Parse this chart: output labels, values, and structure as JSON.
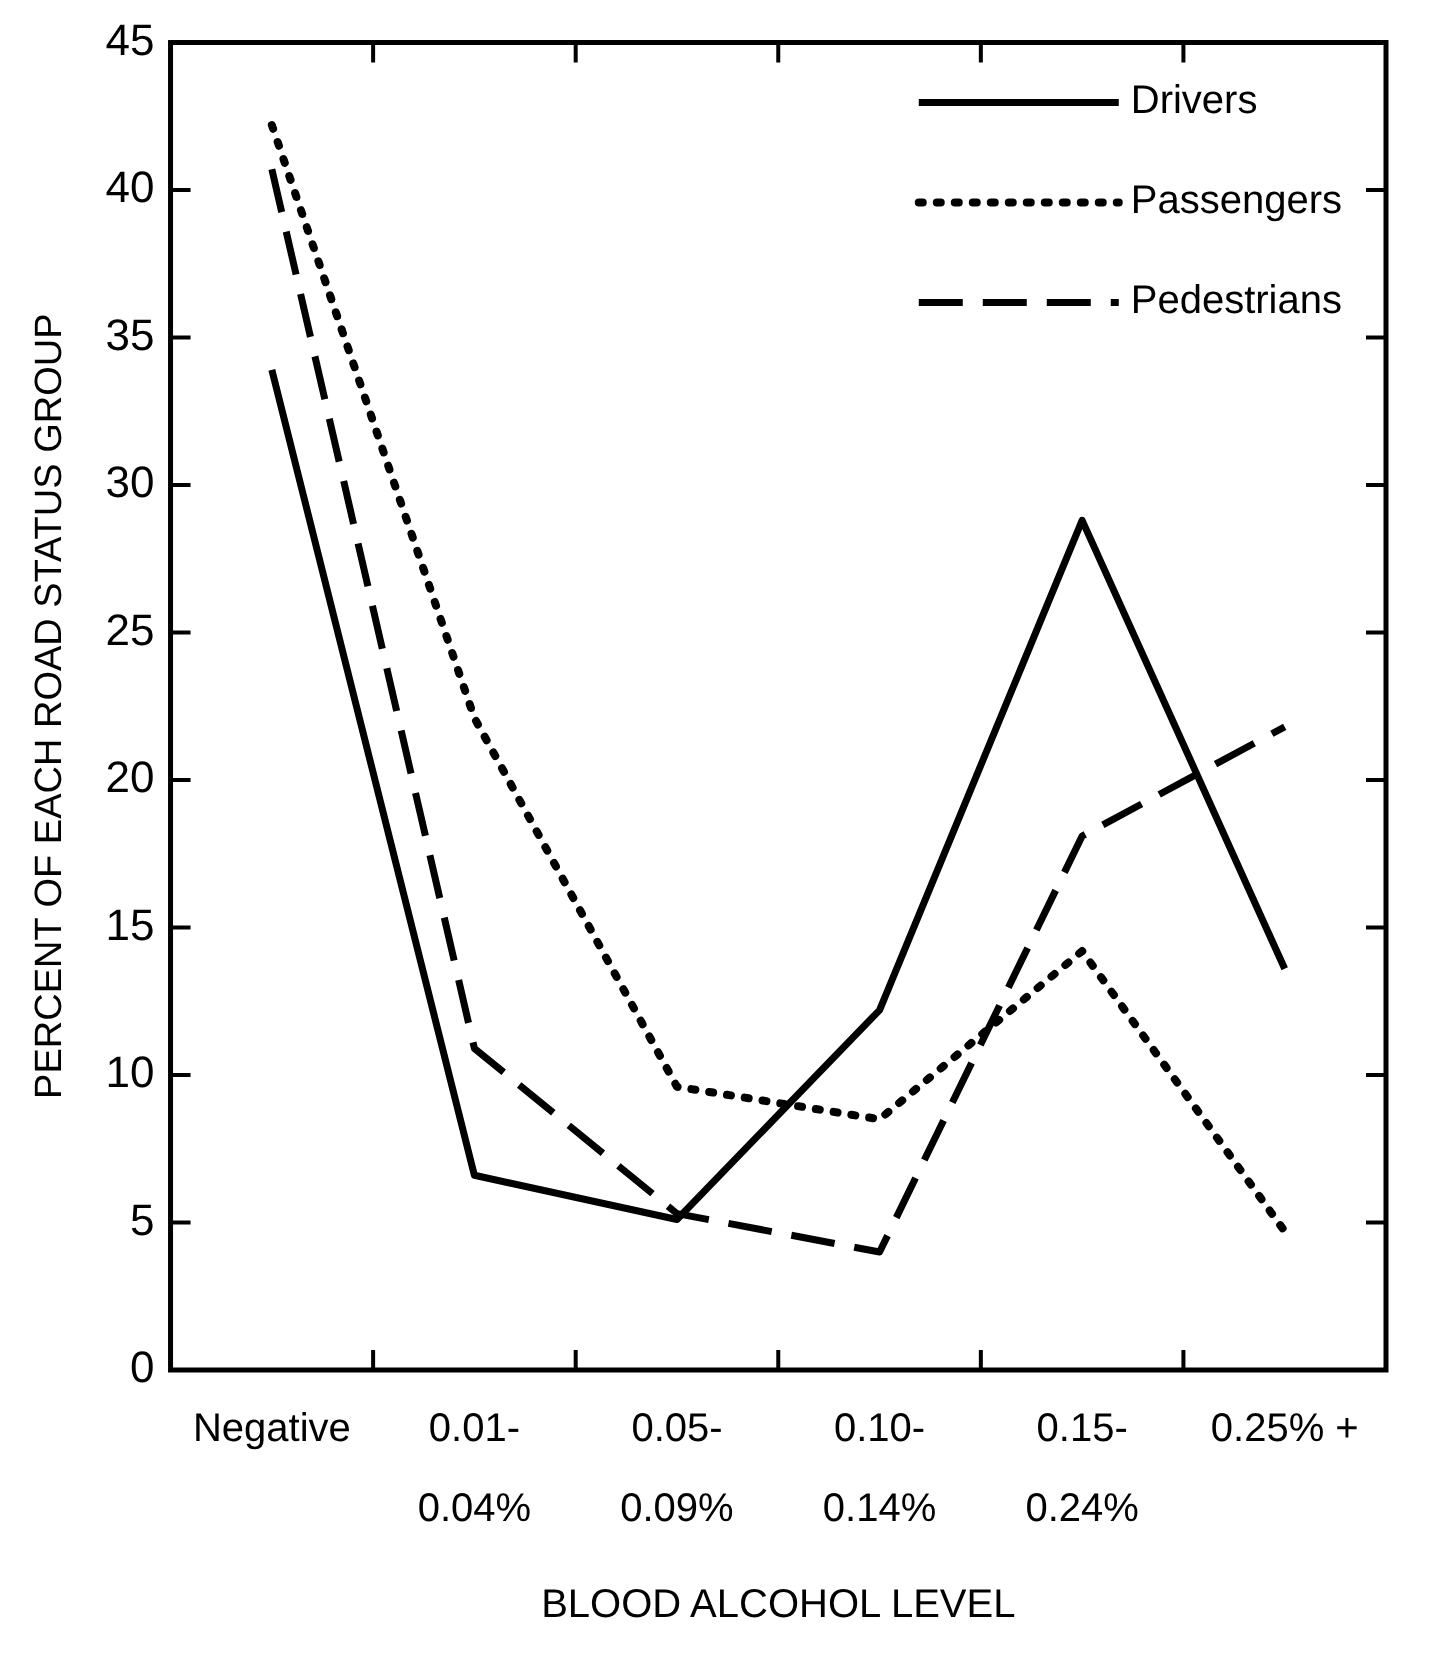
{
  "chart_data": {
    "type": "line",
    "xlabel": "BLOOD ALCOHOL LEVEL",
    "ylabel": "PERCENT OF EACH ROAD STATUS GROUP",
    "categories": [
      "Negative",
      "0.01-\n0.04%",
      "0.05-\n0.09%",
      "0.10-\n0.14%",
      "0.15-\n0.24%",
      "0.25% +"
    ],
    "series": [
      {
        "name": "Drivers",
        "color": "#000000",
        "line_style": "solid",
        "values": [
          33.9,
          6.6,
          5.1,
          12.2,
          28.8,
          13.6
        ]
      },
      {
        "name": "Passengers",
        "color": "#000000",
        "line_style": "dotted",
        "values": [
          42.2,
          22.1,
          9.6,
          8.5,
          14.2,
          4.7
        ]
      },
      {
        "name": "Pedestrians",
        "color": "#000000",
        "line_style": "dashed",
        "values": [
          40.7,
          10.9,
          5.3,
          4.0,
          18.1,
          21.8
        ]
      }
    ],
    "ylim": [
      0,
      45
    ],
    "yticks": [
      0,
      5,
      10,
      15,
      20,
      25,
      30,
      35,
      40,
      45
    ],
    "grid": false,
    "legend": "top right",
    "marker": "none"
  }
}
